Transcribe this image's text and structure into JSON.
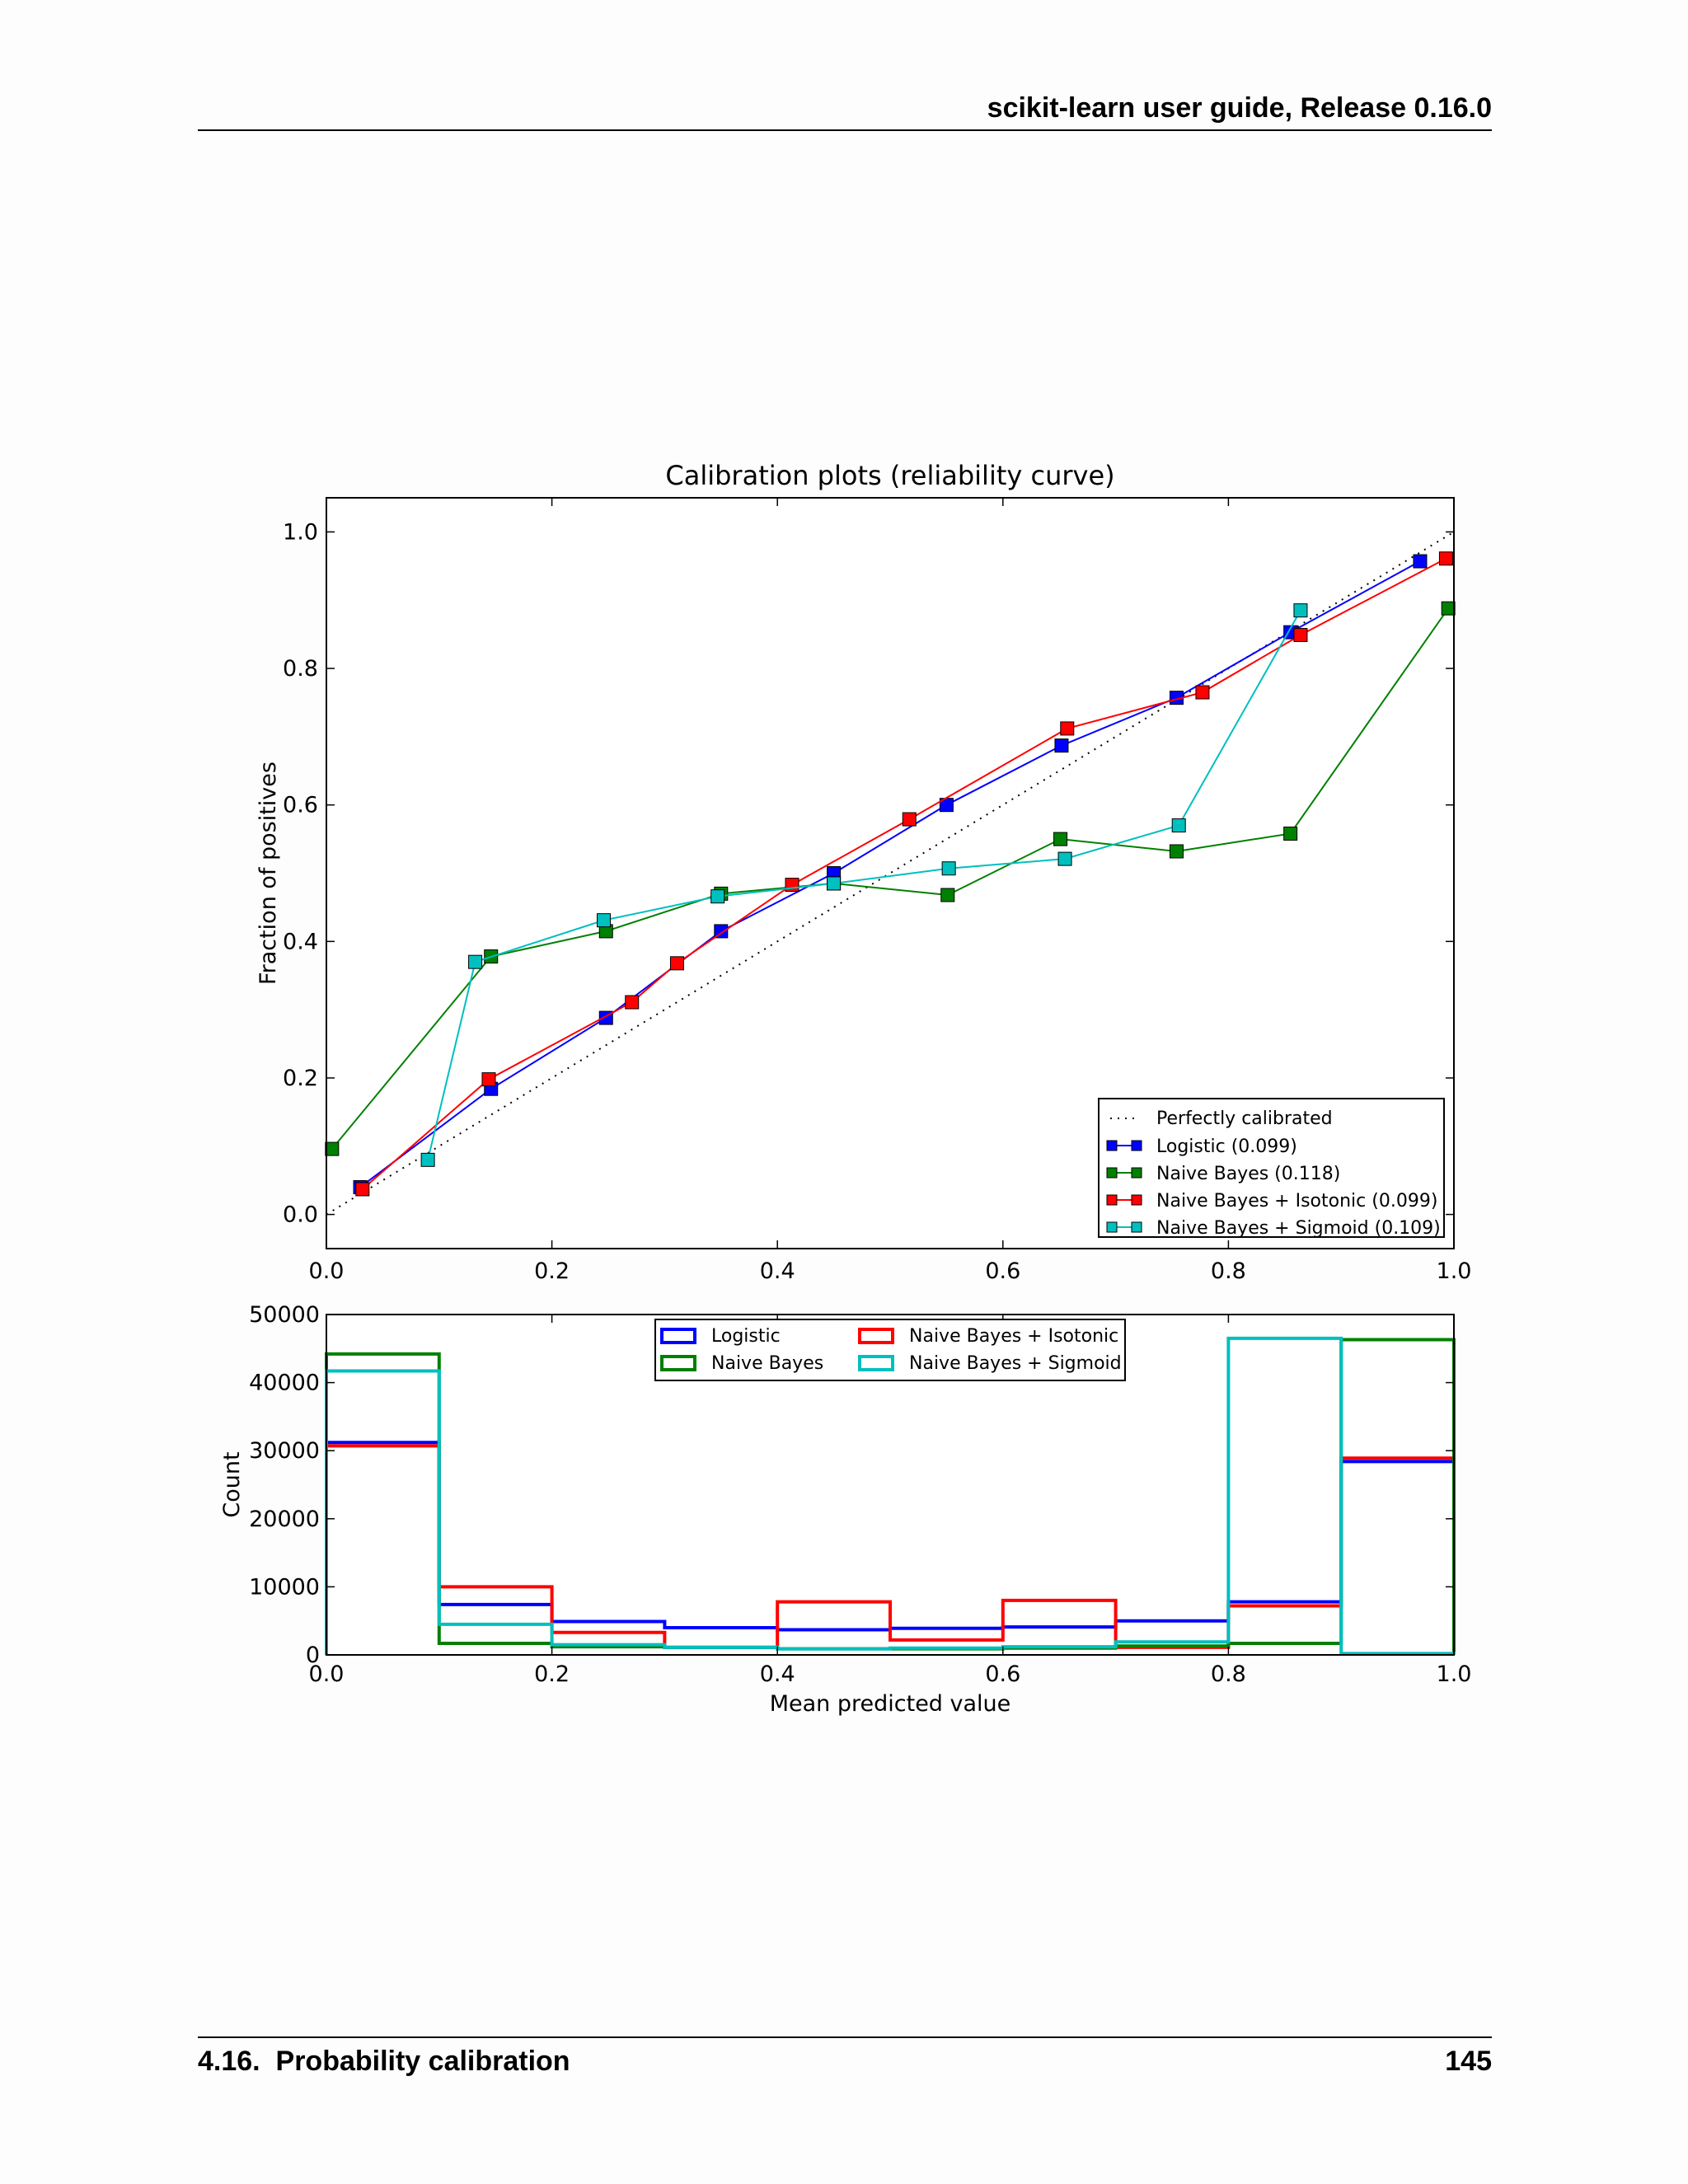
{
  "header": {
    "title": "scikit-learn user guide, Release 0.16.0"
  },
  "footer": {
    "section": "4.16.  Probability calibration",
    "page": "145"
  },
  "chart_data": [
    {
      "type": "line",
      "title": "Calibration plots  (reliability curve)",
      "xlabel": "",
      "ylabel": "Fraction of positives",
      "xlim": [
        0,
        1
      ],
      "ylim": [
        -0.05,
        1.05
      ],
      "xticks": [
        "0.0",
        "0.2",
        "0.4",
        "0.6",
        "0.8",
        "1.0"
      ],
      "yticks": [
        "0.0",
        "0.2",
        "0.4",
        "0.6",
        "0.8",
        "1.0"
      ],
      "legend_position": "lower-right",
      "reference": {
        "name": "Perfectly calibrated",
        "x": [
          0,
          1
        ],
        "y": [
          0,
          1
        ],
        "color": "#000000",
        "style": "dotted"
      },
      "series": [
        {
          "name": "Logistic (0.099)",
          "color": "#0000ff",
          "x": [
            0.03,
            0.146,
            0.248,
            0.35,
            0.45,
            0.55,
            0.652,
            0.754,
            0.855,
            0.97
          ],
          "y": [
            0.04,
            0.184,
            0.288,
            0.415,
            0.5,
            0.6,
            0.687,
            0.757,
            0.853,
            0.957
          ]
        },
        {
          "name": "Naive Bayes (0.118)",
          "color": "#008000",
          "x": [
            0.005,
            0.146,
            0.248,
            0.35,
            0.45,
            0.551,
            0.651,
            0.754,
            0.855,
            0.995
          ],
          "y": [
            0.096,
            0.378,
            0.415,
            0.47,
            0.485,
            0.468,
            0.55,
            0.532,
            0.558,
            0.888
          ]
        },
        {
          "name": "Naive Bayes + Isotonic (0.099)",
          "color": "#ff0000",
          "x": [
            0.032,
            0.144,
            0.271,
            0.311,
            0.413,
            0.517,
            0.657,
            0.777,
            0.864,
            0.993
          ],
          "y": [
            0.037,
            0.198,
            0.311,
            0.368,
            0.483,
            0.579,
            0.712,
            0.765,
            0.849,
            0.961
          ]
        },
        {
          "name": "Naive Bayes + Sigmoid (0.109)",
          "color": "#00bfbf",
          "x": [
            0.09,
            0.132,
            0.246,
            0.347,
            0.45,
            0.552,
            0.655,
            0.756,
            0.864
          ],
          "y": [
            0.08,
            0.37,
            0.431,
            0.466,
            0.485,
            0.507,
            0.521,
            0.57,
            0.885
          ]
        }
      ]
    },
    {
      "type": "histogram",
      "xlabel": "Mean predicted value",
      "ylabel": "Count",
      "xlim": [
        0,
        1
      ],
      "ylim": [
        0,
        50000
      ],
      "xticks": [
        "0.0",
        "0.2",
        "0.4",
        "0.6",
        "0.8",
        "1.0"
      ],
      "yticks": [
        "0",
        "10000",
        "20000",
        "30000",
        "40000",
        "50000"
      ],
      "legend_position": "upper-center",
      "bin_edges": [
        0,
        0.1,
        0.2,
        0.3,
        0.4,
        0.5,
        0.6,
        0.7,
        0.8,
        0.9,
        1.0
      ],
      "series": [
        {
          "name": "Logistic",
          "color": "#0000ff",
          "values": [
            31200,
            7400,
            4900,
            4000,
            3700,
            3900,
            4100,
            5000,
            7800,
            28400
          ]
        },
        {
          "name": "Naive Bayes",
          "color": "#008000",
          "values": [
            44200,
            1700,
            1200,
            1100,
            900,
            900,
            1000,
            1300,
            1700,
            46300
          ]
        },
        {
          "name": "Naive Bayes + Isotonic",
          "color": "#ff0000",
          "values": [
            30700,
            10000,
            3300,
            1100,
            7800,
            2200,
            8000,
            1100,
            7200,
            28900
          ]
        },
        {
          "name": "Naive Bayes + Sigmoid",
          "color": "#00bfbf",
          "values": [
            41700,
            4500,
            1500,
            1100,
            900,
            1000,
            1200,
            1900,
            46500,
            200
          ]
        }
      ]
    }
  ]
}
